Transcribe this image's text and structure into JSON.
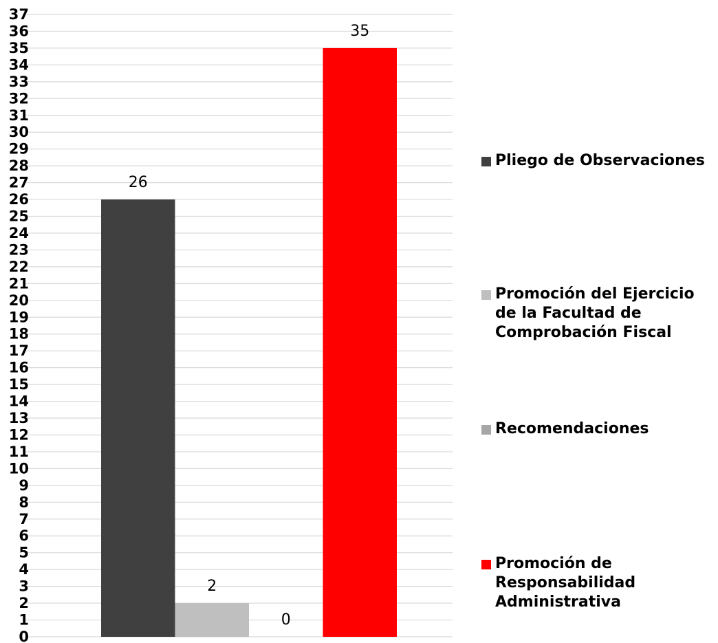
{
  "chart_data": {
    "type": "bar",
    "categories": [
      "Pliego de Observaciones",
      "Promoción del Ejercicio de la Facultad de Comprobación Fiscal",
      "Recomendaciones",
      "Promoción de Responsabilidad Administrativa"
    ],
    "values": [
      26,
      2,
      0,
      35
    ],
    "data_labels": [
      "26",
      "2",
      "0",
      "35"
    ],
    "colors": [
      "#404040",
      "#bfbfbf",
      "#a6a6a6",
      "#ff0000"
    ],
    "ylim": [
      0,
      37
    ],
    "yticks": [
      "0",
      "1",
      "2",
      "3",
      "4",
      "5",
      "6",
      "7",
      "8",
      "9",
      "10",
      "11",
      "12",
      "13",
      "14",
      "15",
      "16",
      "17",
      "18",
      "19",
      "20",
      "21",
      "22",
      "23",
      "24",
      "25",
      "26",
      "27",
      "28",
      "29",
      "30",
      "31",
      "32",
      "33",
      "34",
      "35",
      "36",
      "37"
    ],
    "grid": true,
    "legend_position": "right",
    "title": "",
    "xlabel": "",
    "ylabel": ""
  },
  "legend": {
    "items": [
      {
        "label": "Pliego de Observaciones",
        "color": "#404040"
      },
      {
        "label": "Promoción del Ejercicio de la Facultad de Comprobación Fiscal",
        "color": "#bfbfbf"
      },
      {
        "label": "Recomendaciones",
        "color": "#a6a6a6"
      },
      {
        "label": "Promoción de Responsabilidad Administrativa",
        "color": "#ff0000"
      }
    ]
  }
}
